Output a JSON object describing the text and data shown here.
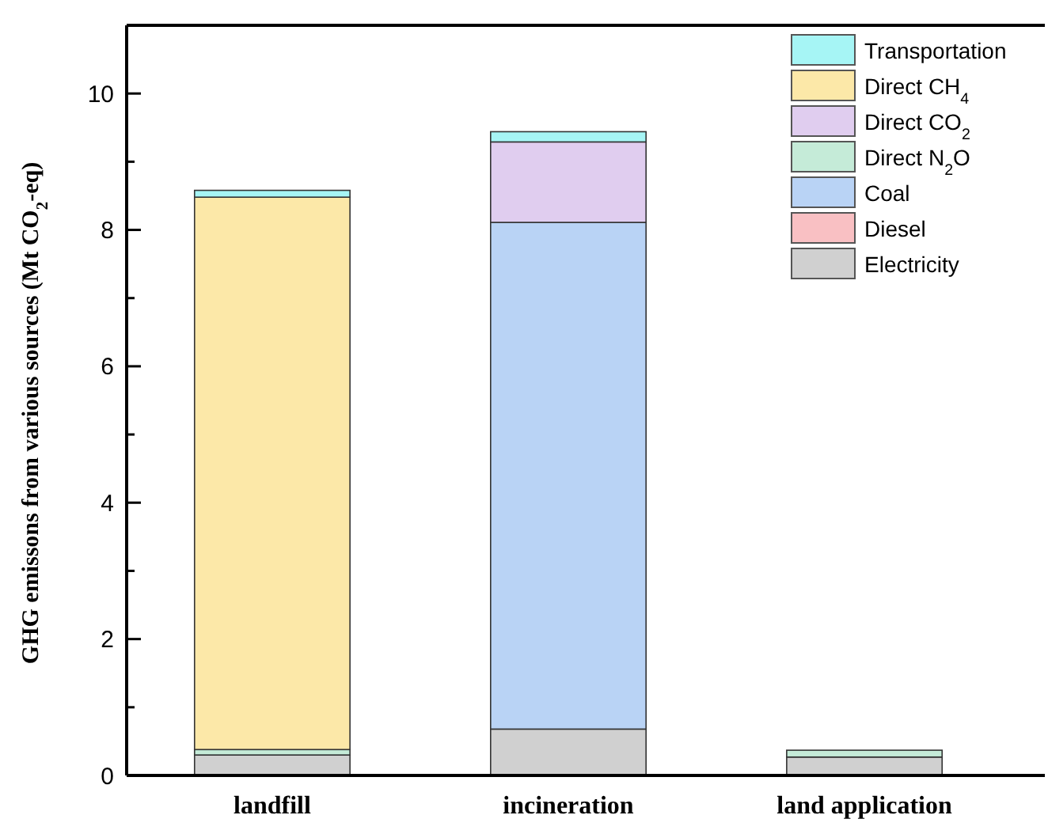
{
  "chart_data": {
    "type": "bar",
    "stacked": true,
    "ylabel": "GHG emissons from various sources (Mt CO$_{2}$-eq)",
    "categories": [
      "landfill",
      "incineration",
      "land application"
    ],
    "series": [
      {
        "name": "Electricity",
        "color": "#d0d0d0",
        "values": [
          0.3,
          0.68,
          0.27
        ]
      },
      {
        "name": "Diesel",
        "color": "#f9c0c3",
        "values": [
          null,
          null,
          null
        ]
      },
      {
        "name": "Coal",
        "color": "#b9d3f5",
        "values": [
          null,
          7.43,
          null
        ]
      },
      {
        "name": "Direct N$_{2}$O",
        "color": "#c5ebd8",
        "values": [
          0.08,
          null,
          0.1
        ]
      },
      {
        "name": "Direct CO$_{2}$",
        "color": "#e0cdef",
        "values": [
          null,
          1.18,
          null
        ]
      },
      {
        "name": "Direct CH$_{4}$",
        "color": "#fce8a8",
        "values": [
          8.1,
          null,
          null
        ]
      },
      {
        "name": "Transportation",
        "color": "#a6f5f5",
        "values": [
          0.1,
          0.15,
          null
        ]
      }
    ],
    "ylim": [
      0,
      11
    ],
    "yticks": [
      0,
      {
        "value": 1,
        "label": null
      },
      2,
      {
        "value": 3,
        "label": null
      },
      4,
      {
        "value": 5,
        "label": null
      },
      6,
      {
        "value": 7,
        "label": null
      },
      8,
      {
        "value": 9,
        "label": null
      },
      10
    ],
    "legend": "top right",
    "grid": false
  }
}
